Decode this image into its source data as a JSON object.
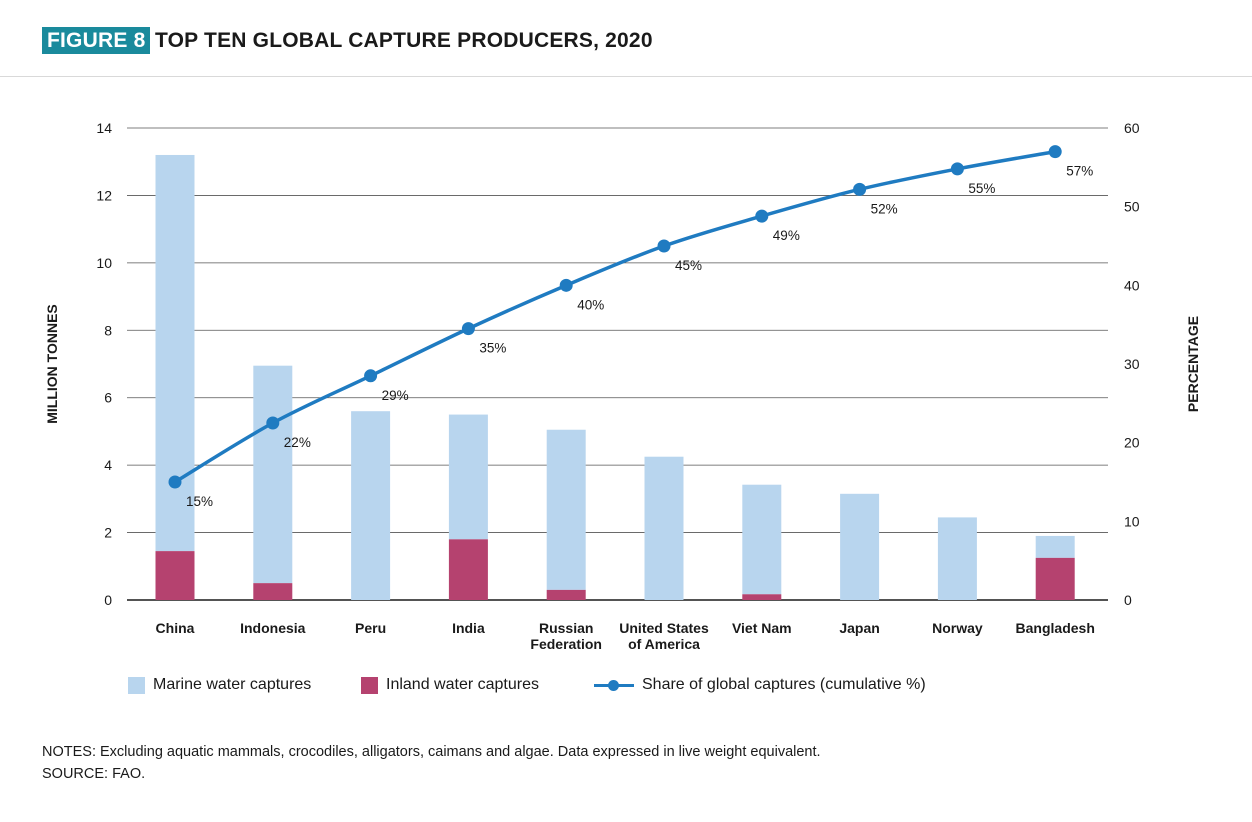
{
  "header": {
    "figure_tag": "FIGURE 8",
    "title": "TOP TEN GLOBAL CAPTURE PRODUCERS, 2020"
  },
  "chart_data": {
    "type": "bar",
    "stacked": true,
    "categories": [
      "China",
      "Indonesia",
      "Peru",
      "India",
      "Russian Federation",
      "United States of America",
      "Viet Nam",
      "Japan",
      "Norway",
      "Bangladesh"
    ],
    "category_lines": [
      [
        "China"
      ],
      [
        "Indonesia"
      ],
      [
        "Peru"
      ],
      [
        "India"
      ],
      [
        "Russian",
        "Federation"
      ],
      [
        "United States",
        "of America"
      ],
      [
        "Viet Nam"
      ],
      [
        "Japan"
      ],
      [
        "Norway"
      ],
      [
        "Bangladesh"
      ]
    ],
    "series": [
      {
        "name": "Inland water captures",
        "color": "#b5426f",
        "axis": "left",
        "values": [
          1.45,
          0.5,
          0.0,
          1.8,
          0.3,
          0.0,
          0.17,
          0.0,
          0.0,
          1.25
        ]
      },
      {
        "name": "Marine water captures",
        "color": "#b8d5ee",
        "axis": "left",
        "values": [
          11.75,
          6.45,
          5.6,
          3.7,
          4.75,
          4.25,
          3.25,
          3.15,
          2.45,
          0.65
        ]
      },
      {
        "name": "Share of global captures (cumulative %)",
        "type": "line",
        "color": "#1f7bc1",
        "axis": "right",
        "values": [
          15,
          22.5,
          28.5,
          34.5,
          40,
          45,
          48.8,
          52.2,
          54.8,
          57
        ],
        "labels": [
          "15%",
          "22%",
          "29%",
          "35%",
          "40%",
          "45%",
          "49%",
          "52%",
          "55%",
          "57%"
        ]
      }
    ],
    "ylabel": "MILLION TONNES",
    "ylim": [
      0,
      14
    ],
    "yticks": [
      "0",
      "2",
      "4",
      "6",
      "8",
      "10",
      "12",
      "14"
    ],
    "y2label": "PERCENTAGE",
    "y2lim": [
      0,
      60
    ],
    "y2ticks": [
      "0",
      "10",
      "20",
      "30",
      "40",
      "50",
      "60"
    ],
    "grid": true,
    "legend_position": "bottom"
  },
  "legend": {
    "marine": "Marine water captures",
    "inland": "Inland water captures",
    "share": "Share of global captures (cumulative %)"
  },
  "notes": {
    "line1": "NOTES: Excluding aquatic mammals, crocodiles, alligators, caimans and algae. Data expressed in live weight equivalent.",
    "line2": "SOURCE: FAO."
  }
}
